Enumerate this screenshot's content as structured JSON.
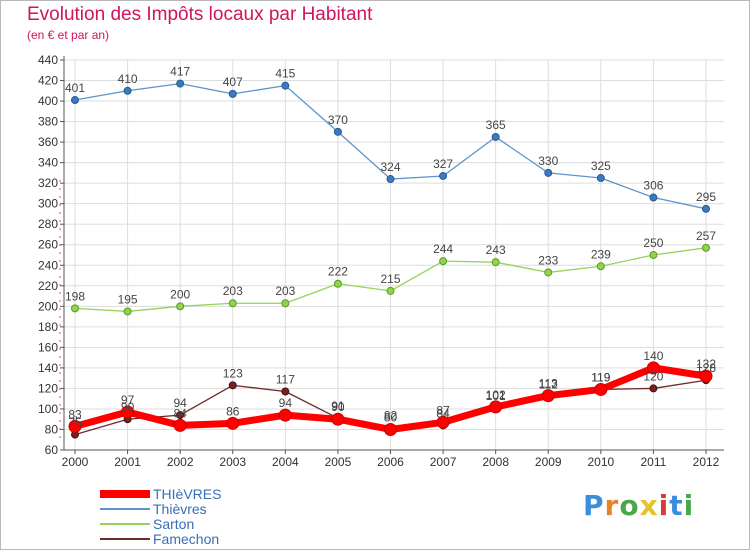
{
  "header": {
    "title": "Evolution des Impôts locaux par Habitant",
    "subtitle": "(en € et par an)"
  },
  "legend": [
    {
      "label": "THIèVRES",
      "color": "#ff0000"
    },
    {
      "label": "Thièvres",
      "color": "#5f94c8"
    },
    {
      "label": "Sarton",
      "color": "#94d45a"
    },
    {
      "label": "Famechon",
      "color": "#6f2a2a"
    }
  ],
  "logo": {
    "letters": [
      "P",
      "r",
      "o",
      "x",
      "i",
      "t",
      "i"
    ],
    "colors": [
      "#3a8fd8",
      "#e8832a",
      "#4aa84a",
      "#e8c22a",
      "#d83a3a",
      "#3a8fd8",
      "#4aa84a"
    ]
  },
  "chart_data": {
    "type": "line",
    "x": [
      "2000",
      "2001",
      "2002",
      "2003",
      "2004",
      "2005",
      "2006",
      "2007",
      "2008",
      "2009",
      "2010",
      "2011",
      "2012"
    ],
    "ylim": [
      60,
      440
    ],
    "yticks": [
      60,
      80,
      100,
      120,
      140,
      160,
      180,
      200,
      220,
      240,
      260,
      280,
      300,
      320,
      340,
      360,
      380,
      400,
      420,
      440
    ],
    "grid": true,
    "series": [
      {
        "name": "Thièvres",
        "color": "#5f94c8",
        "values": [
          401,
          410,
          417,
          407,
          415,
          370,
          324,
          327,
          365,
          330,
          325,
          306,
          295
        ]
      },
      {
        "name": "Sarton",
        "color": "#94d45a",
        "values": [
          198,
          195,
          200,
          203,
          203,
          222,
          215,
          244,
          243,
          233,
          239,
          250,
          257
        ]
      },
      {
        "name": "Famechon",
        "color": "#6f2a2a",
        "values": [
          75,
          90,
          94,
          123,
          117,
          91,
          82,
          84,
          101,
          112,
          119,
          120,
          128
        ]
      },
      {
        "name": "THIèVRES",
        "color": "#ff0000",
        "values": [
          83,
          97,
          84,
          86,
          94,
          90,
          80,
          87,
          102,
          113,
          119,
          140,
          132
        ]
      }
    ]
  }
}
